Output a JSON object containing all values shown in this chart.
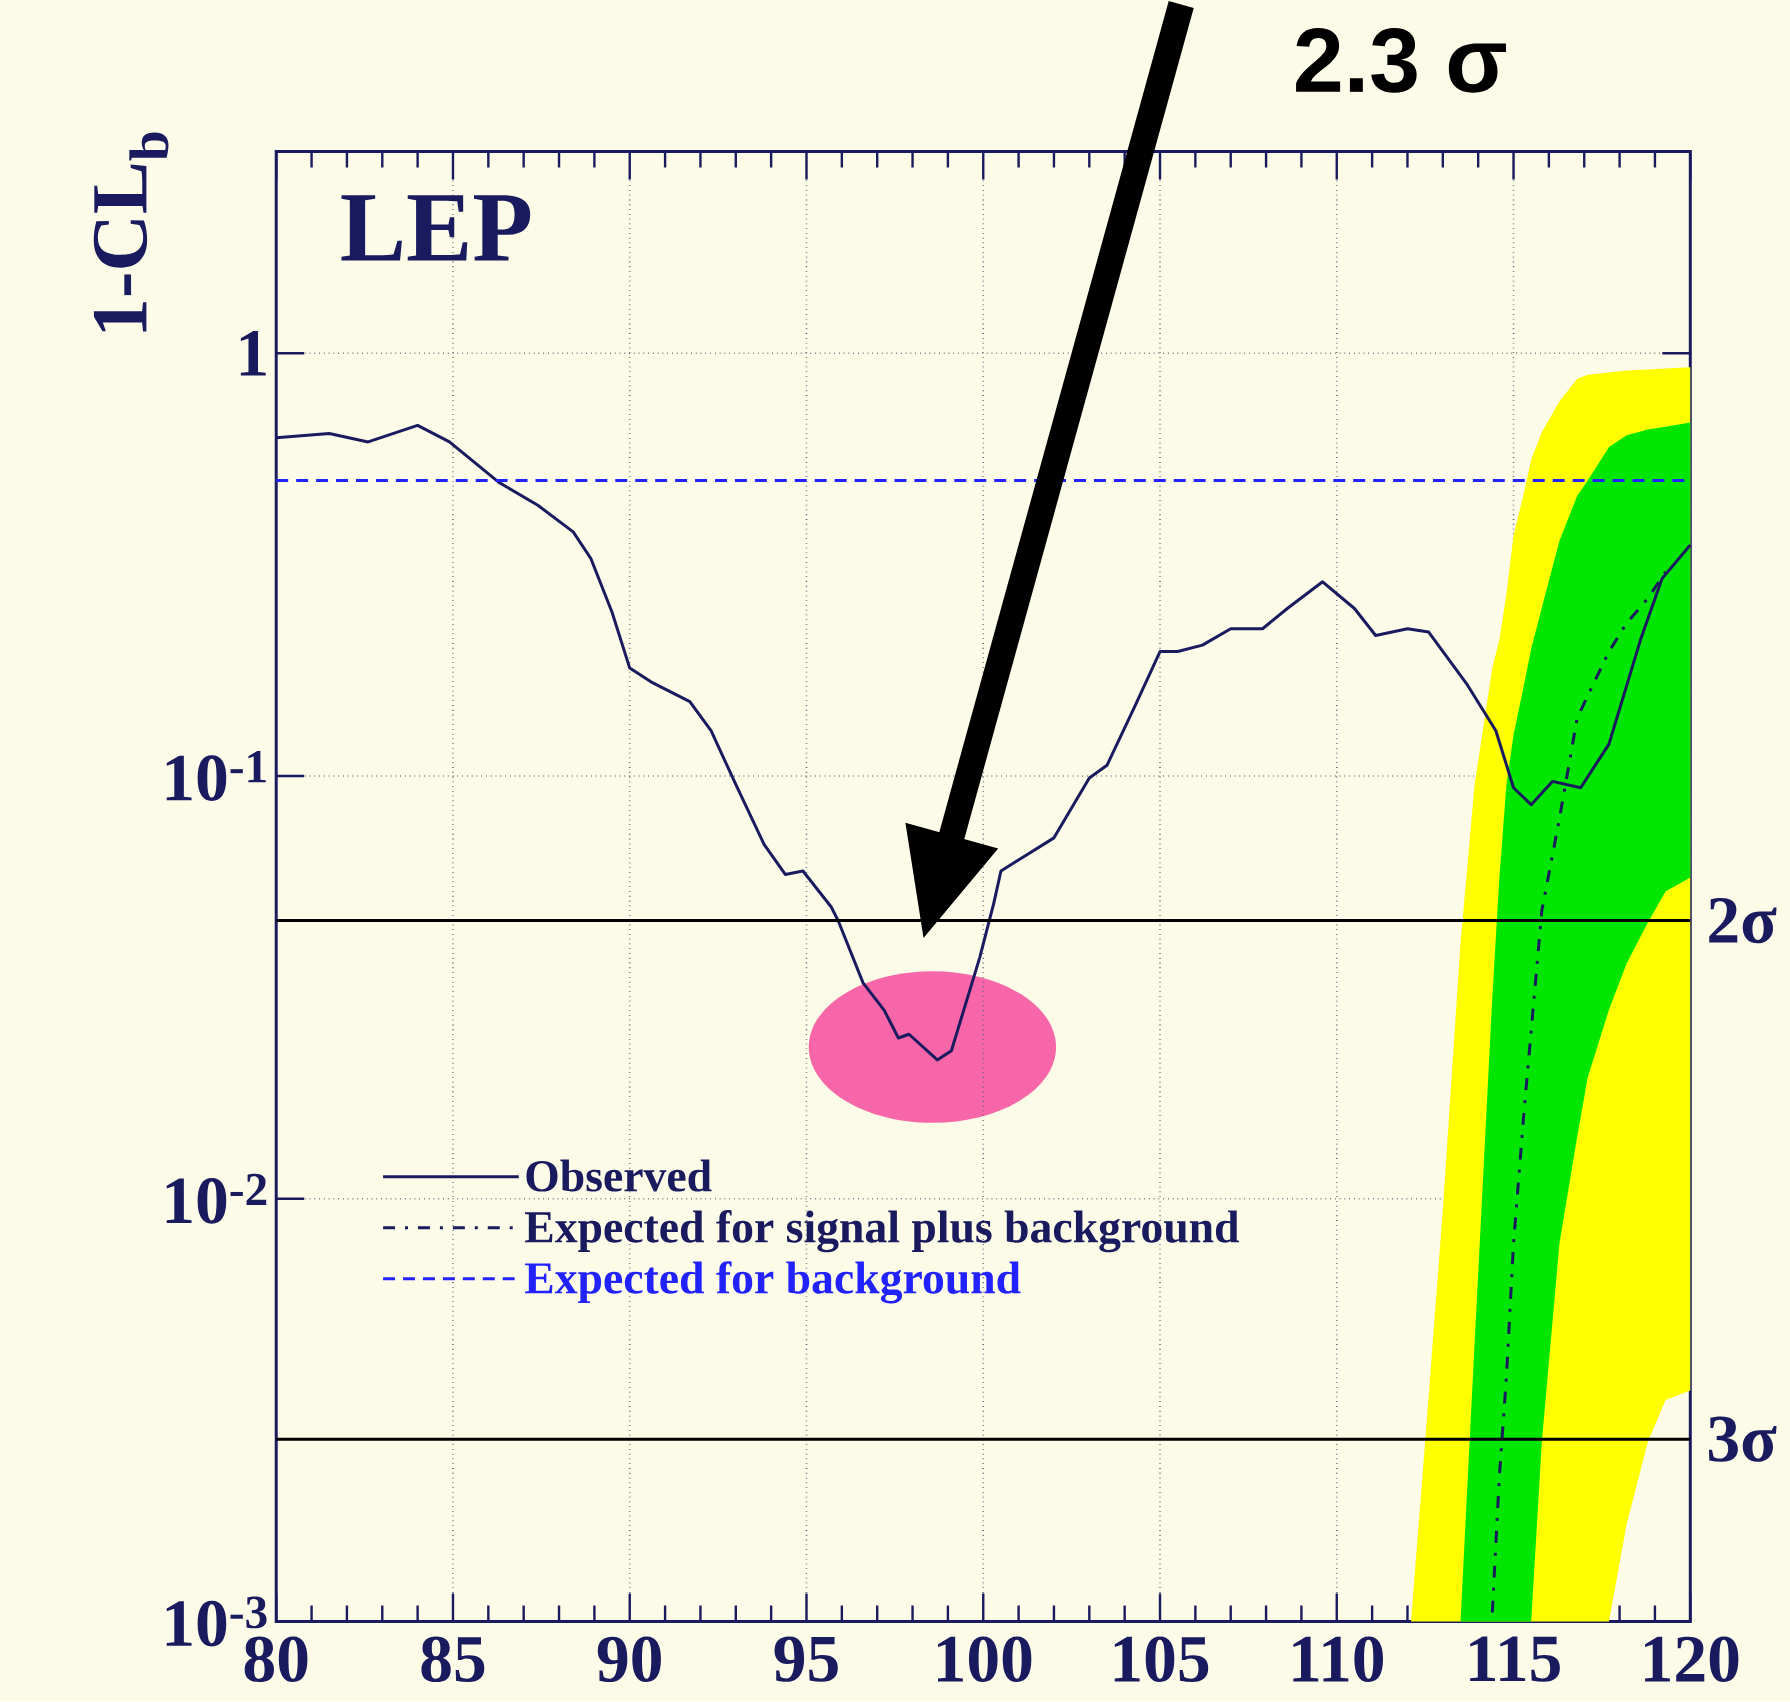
{
  "chart_data": {
    "type": "line",
    "title": "LEP",
    "ylabel": "1-CL$_{b}$",
    "annotations": [
      "2.3 σ"
    ],
    "series": [
      {
        "color": "#ffff00",
        "x": [
          112.1,
          112.5,
          113.0,
          113.5,
          113.9,
          114.4,
          114.6,
          114.8,
          115.0,
          115.3,
          115.5,
          115.8,
          116.3,
          116.8,
          117.1,
          117.7,
          118.2,
          118.8,
          119.3,
          120
        ],
        "values": [
          null,
          null,
          null,
          null,
          null,
          null,
          null,
          null,
          null,
          null,
          null,
          null,
          null,
          null,
          null,
          null,
          null,
          null,
          null,
          null
        ],
        "lower": [
          0.001,
          0.001,
          0.001,
          0.001,
          0.001,
          0.001,
          0.001,
          0.001,
          0.001,
          0.001,
          0.001,
          0.001,
          0.001,
          0.001,
          0.001,
          0.001,
          0.0017,
          0.00266,
          0.00334,
          0.00352
        ],
        "upper": [
          0.001,
          0.00266,
          0.0094,
          0.0402,
          0.0955,
          0.18,
          0.21,
          0.27,
          0.37,
          0.47,
          0.56,
          0.65,
          0.77,
          0.87,
          0.89,
          0.9,
          0.91,
          0.915,
          0.92,
          0.927
        ]
      },
      {
        "color": "#00e600",
        "x": [
          113.5,
          113.9,
          114.4,
          114.6,
          114.8,
          115.0,
          115.3,
          115.5,
          115.8,
          116.3,
          116.8,
          117.1,
          117.7,
          118.2,
          118.8,
          119.3,
          120
        ],
        "values": [
          null,
          null,
          null,
          null,
          null,
          null,
          null,
          null,
          null,
          null,
          null,
          null,
          null,
          null,
          null,
          null,
          null
        ],
        "lower": [
          0.001,
          0.001,
          0.001,
          0.001,
          0.001,
          0.001,
          0.001,
          0.001,
          0.00266,
          0.00785,
          0.014,
          0.0194,
          0.028,
          0.036,
          0.045,
          0.0533,
          0.0575
        ],
        "upper": [
          0.001,
          0.00457,
          0.03,
          0.0575,
          0.0955,
          0.125,
          0.165,
          0.2,
          0.25,
          0.36,
          0.46,
          0.5,
          0.6,
          0.64,
          0.66,
          0.67,
          0.686
        ]
      },
      {
        "name": "Observed",
        "color": "#1a1a5e",
        "line_style": "solid",
        "x": [
          80,
          81.5,
          82.6,
          84.0,
          84.9,
          86.3,
          87.4,
          88.4,
          88.9,
          89.5,
          90.0,
          90.6,
          91.7,
          92.3,
          93.0,
          93.8,
          94.4,
          94.9,
          95.7,
          95.9,
          96.6,
          97.2,
          97.6,
          97.9,
          98.7,
          99.1,
          99.9,
          100.3,
          100.5,
          101.1,
          102.0,
          103.0,
          103.5,
          104.3,
          105.0,
          105.5,
          106.2,
          107.0,
          107.9,
          108.6,
          109.6,
          110.5,
          111.1,
          112.0,
          112.6,
          113.7,
          114.5,
          115.0,
          115.5,
          116.1,
          116.9,
          117.7,
          118.6,
          119.2,
          120
        ],
        "values": [
          0.631,
          0.646,
          0.617,
          0.675,
          0.617,
          0.495,
          0.437,
          0.378,
          0.327,
          0.244,
          0.18,
          0.167,
          0.15,
          0.128,
          0.0955,
          0.0689,
          0.0585,
          0.0596,
          0.049,
          0.0454,
          0.0324,
          0.0279,
          0.024,
          0.0245,
          0.0213,
          0.0224,
          0.0372,
          0.0501,
          0.0596,
          0.0641,
          0.0714,
          0.0989,
          0.106,
          0.147,
          0.197,
          0.197,
          0.204,
          0.223,
          0.223,
          0.249,
          0.288,
          0.249,
          0.215,
          0.223,
          0.219,
          0.164,
          0.128,
          0.0938,
          0.0855,
          0.0971,
          0.0938,
          0.119,
          0.211,
          0.293,
          0.352
        ]
      },
      {
        "name": "Expected for signal plus background",
        "color": "#1a1a5e",
        "line_style": "dashdot",
        "x": [
          114.4,
          114.6,
          114.8,
          115.0,
          115.3,
          115.5,
          115.8,
          116.3,
          116.8,
          117.1,
          117.7,
          118.2,
          118.8,
          119.3
        ],
        "values": [
          0.00105,
          0.00221,
          0.0038,
          0.00785,
          0.0162,
          0.025,
          0.048,
          0.0794,
          0.137,
          0.155,
          0.197,
          0.23,
          0.263,
          0.304
        ]
      },
      {
        "name": "Expected for background",
        "color": "#2222ff",
        "line_style": "dashed",
        "x": [
          80,
          120
        ],
        "values": [
          0.5,
          0.5
        ]
      }
    ],
    "xlim": [
      80,
      120
    ],
    "ylim": [
      0.001,
      3
    ],
    "xticks": [
      80,
      85,
      90,
      95,
      100,
      105,
      110,
      115,
      120
    ],
    "yticks": [
      {
        "value": 0.001,
        "label": "10$^{-3}$"
      },
      {
        "value": 0.01,
        "label": "10$^{-2}$"
      },
      {
        "value": 0.1,
        "label": "10$^{-1}$"
      },
      {
        "value": 1,
        "label": "1"
      }
    ],
    "log": "y",
    "grid": true,
    "legend": "bottom left",
    "ref_lines": [
      {
        "axis": "y",
        "value": 0.0455,
        "label": "2σ",
        "color": "#000000"
      },
      {
        "axis": "y",
        "value": 0.0027,
        "label": "3σ",
        "color": "#000000"
      }
    ]
  }
}
